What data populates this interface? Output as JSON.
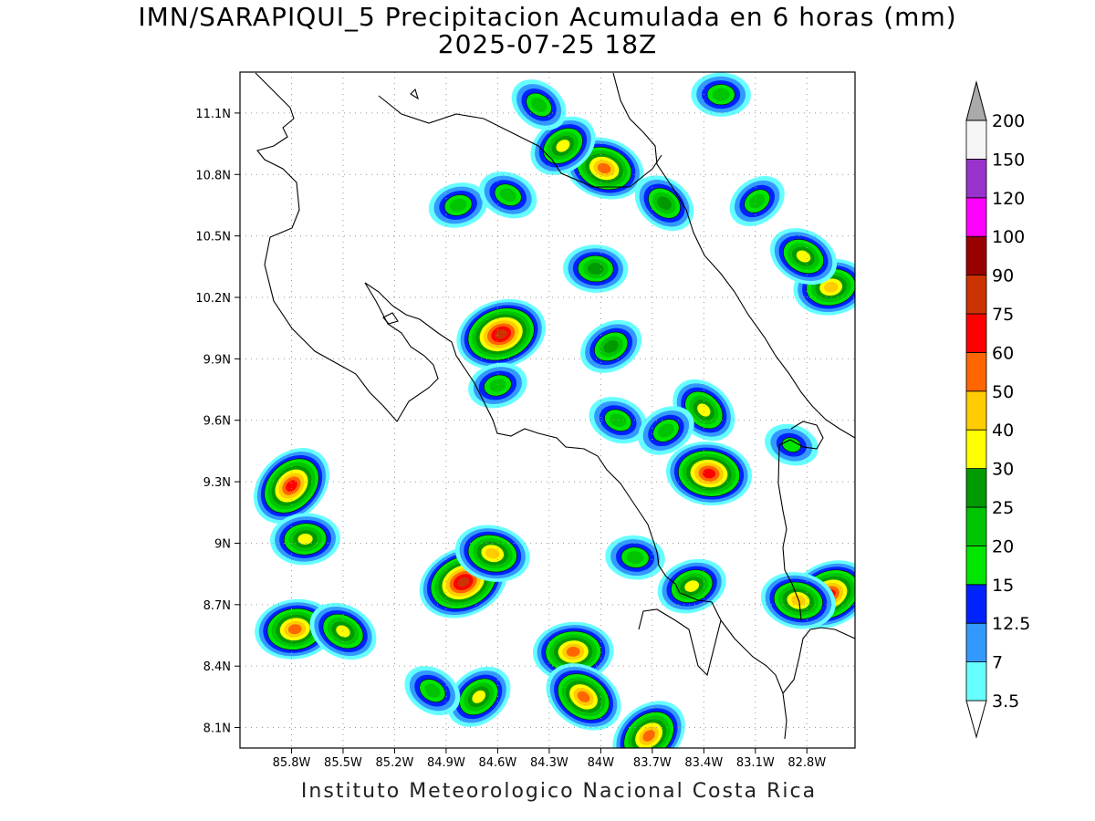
{
  "title": {
    "line1": "IMN/SARAPIQUI_5 Precipitacion Acumulada en 6 horas (mm)",
    "line2": "2025-07-25 18Z"
  },
  "footer": "Instituto Meteorologico Nacional Costa Rica",
  "map": {
    "lon_range": [
      -86.1,
      -82.52
    ],
    "lat_range": [
      8.0,
      11.3
    ],
    "lat_ticks": [
      {
        "value": 11.1,
        "label": "11.1N"
      },
      {
        "value": 10.8,
        "label": "10.8N"
      },
      {
        "value": 10.5,
        "label": "10.5N"
      },
      {
        "value": 10.2,
        "label": "10.2N"
      },
      {
        "value": 9.9,
        "label": "9.9N"
      },
      {
        "value": 9.6,
        "label": "9.6N"
      },
      {
        "value": 9.3,
        "label": "9.3N"
      },
      {
        "value": 9.0,
        "label": "9N"
      },
      {
        "value": 8.7,
        "label": "8.7N"
      },
      {
        "value": 8.4,
        "label": "8.4N"
      },
      {
        "value": 8.1,
        "label": "8.1N"
      }
    ],
    "lon_ticks": [
      {
        "value": -85.8,
        "label": "85.8W"
      },
      {
        "value": -85.5,
        "label": "85.5W"
      },
      {
        "value": -85.2,
        "label": "85.2W"
      },
      {
        "value": -84.9,
        "label": "84.9W"
      },
      {
        "value": -84.6,
        "label": "84.6W"
      },
      {
        "value": -84.3,
        "label": "84.3W"
      },
      {
        "value": -84.0,
        "label": "84W"
      },
      {
        "value": -83.7,
        "label": "83.7W"
      },
      {
        "value": -83.4,
        "label": "83.4W"
      },
      {
        "value": -83.1,
        "label": "83.1W"
      },
      {
        "value": -82.8,
        "label": "82.8W"
      }
    ],
    "grid": "dotted",
    "precip_cells": [
      {
        "lon": -85.8,
        "lat": 9.28,
        "max": 60
      },
      {
        "lon": -85.78,
        "lat": 8.58,
        "max": 50
      },
      {
        "lon": -85.5,
        "lat": 8.57,
        "max": 30
      },
      {
        "lon": -84.8,
        "lat": 8.81,
        "max": 75
      },
      {
        "lon": -84.63,
        "lat": 8.95,
        "max": 40
      },
      {
        "lon": -84.71,
        "lat": 8.25,
        "max": 30
      },
      {
        "lon": -84.16,
        "lat": 8.47,
        "max": 50
      },
      {
        "lon": -84.1,
        "lat": 8.25,
        "max": 50
      },
      {
        "lon": -84.58,
        "lat": 10.02,
        "max": 75
      },
      {
        "lon": -83.98,
        "lat": 10.83,
        "max": 50
      },
      {
        "lon": -84.22,
        "lat": 10.94,
        "max": 30
      },
      {
        "lon": -84.03,
        "lat": 10.34,
        "max": 25
      },
      {
        "lon": -83.63,
        "lat": 10.66,
        "max": 25
      },
      {
        "lon": -84.83,
        "lat": 10.65,
        "max": 20
      },
      {
        "lon": -84.54,
        "lat": 10.7,
        "max": 20
      },
      {
        "lon": -83.94,
        "lat": 9.96,
        "max": 25
      },
      {
        "lon": -83.37,
        "lat": 9.34,
        "max": 60
      },
      {
        "lon": -83.4,
        "lat": 9.65,
        "max": 30
      },
      {
        "lon": -82.66,
        "lat": 10.25,
        "max": 40
      },
      {
        "lon": -82.82,
        "lat": 10.4,
        "max": 30
      },
      {
        "lon": -82.67,
        "lat": 8.75,
        "max": 60
      },
      {
        "lon": -82.85,
        "lat": 8.72,
        "max": 40
      },
      {
        "lon": -83.72,
        "lat": 8.06,
        "max": 50
      },
      {
        "lon": -85.72,
        "lat": 9.02,
        "max": 30
      },
      {
        "lon": -84.98,
        "lat": 8.28,
        "max": 20
      },
      {
        "lon": -83.47,
        "lat": 8.79,
        "max": 30
      },
      {
        "lon": -82.89,
        "lat": 9.48,
        "max": 15
      },
      {
        "lon": -83.09,
        "lat": 10.67,
        "max": 20
      },
      {
        "lon": -83.3,
        "lat": 11.19,
        "max": 20
      },
      {
        "lon": -84.36,
        "lat": 11.14,
        "max": 20
      },
      {
        "lon": -84.6,
        "lat": 9.77,
        "max": 20
      },
      {
        "lon": -83.9,
        "lat": 9.6,
        "max": 20
      },
      {
        "lon": -83.62,
        "lat": 9.55,
        "max": 20
      },
      {
        "lon": -83.8,
        "lat": 8.93,
        "max": 20
      }
    ]
  },
  "colorbar": {
    "levels": [
      "3.5",
      "7",
      "12.5",
      "15",
      "20",
      "25",
      "30",
      "40",
      "50",
      "60",
      "75",
      "90",
      "100",
      "120",
      "150",
      "200"
    ],
    "colors": [
      "#66ffff",
      "#3399ff",
      "#0022ff",
      "#00e600",
      "#00c400",
      "#009900",
      "#ffff00",
      "#ffcc00",
      "#ff6600",
      "#ff0000",
      "#cc3300",
      "#990000",
      "#ff00ff",
      "#9933cc",
      "#f5f5f5",
      "#aaaaaa"
    ]
  }
}
